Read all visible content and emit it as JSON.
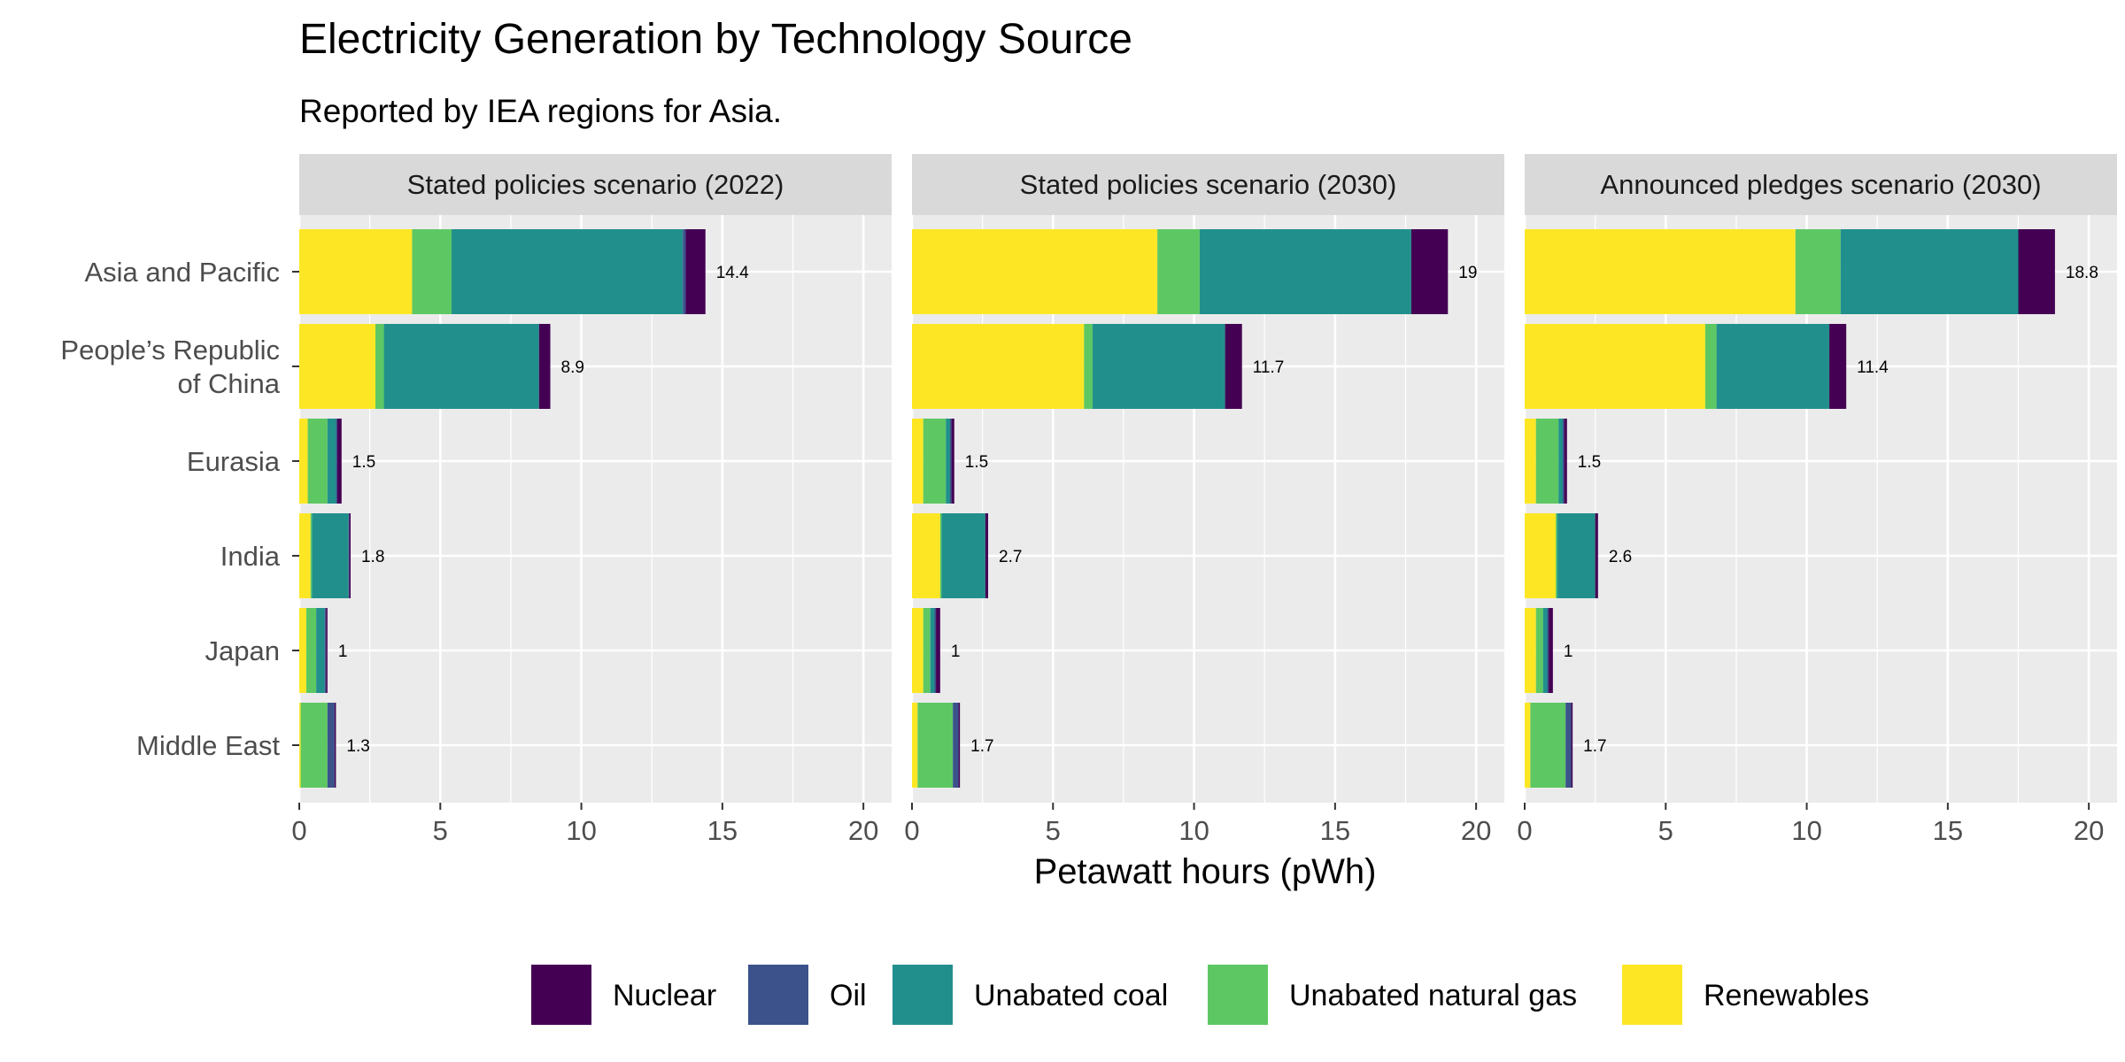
{
  "chart_data": {
    "type": "bar",
    "orientation": "horizontal",
    "stacked": true,
    "faceted": true,
    "title": "Electricity Generation by Technology Source",
    "subtitle": "Reported by IEA regions for Asia.",
    "xlabel": "Petawatt hours (pWh)",
    "xlim": [
      0,
      21
    ],
    "xticks": [
      0,
      5,
      10,
      15,
      20
    ],
    "categories": [
      [
        "Asia and Pacific"
      ],
      [
        "People’s Republic",
        "of China"
      ],
      [
        "Eurasia"
      ],
      [
        "India"
      ],
      [
        "Japan"
      ],
      [
        "Middle East"
      ]
    ],
    "series": [
      {
        "name": "Nuclear",
        "color": "#440154"
      },
      {
        "name": "Oil",
        "color": "#3B528B"
      },
      {
        "name": "Unabated coal",
        "color": "#21908C"
      },
      {
        "name": "Unabated natural gas",
        "color": "#5DC863"
      },
      {
        "name": "Renewables",
        "color": "#FDE725"
      }
    ],
    "stack_order_left_to_right": [
      "Renewables",
      "Unabated natural gas",
      "Unabated coal",
      "Oil",
      "Nuclear"
    ],
    "panels": [
      {
        "label": "Stated policies scenario (2022)",
        "totals": [
          "14.4",
          "8.9",
          "1.5",
          "1.8",
          "1",
          "1.3"
        ],
        "rows": [
          {
            "Renewables": 4.0,
            "Unabated natural gas": 1.4,
            "Unabated coal": 8.2,
            "Oil": 0.1,
            "Nuclear": 0.7
          },
          {
            "Renewables": 2.7,
            "Unabated natural gas": 0.3,
            "Unabated coal": 5.5,
            "Oil": 0.0,
            "Nuclear": 0.4
          },
          {
            "Renewables": 0.3,
            "Unabated natural gas": 0.7,
            "Unabated coal": 0.3,
            "Oil": 0.05,
            "Nuclear": 0.15
          },
          {
            "Renewables": 0.4,
            "Unabated natural gas": 0.05,
            "Unabated coal": 1.3,
            "Oil": 0.02,
            "Nuclear": 0.05
          },
          {
            "Renewables": 0.25,
            "Unabated natural gas": 0.35,
            "Unabated coal": 0.3,
            "Oil": 0.05,
            "Nuclear": 0.05
          },
          {
            "Renewables": 0.05,
            "Unabated natural gas": 0.95,
            "Unabated coal": 0.0,
            "Oil": 0.25,
            "Nuclear": 0.05
          }
        ]
      },
      {
        "label": "Stated policies scenario (2030)",
        "totals": [
          "19",
          "11.7",
          "1.5",
          "2.7",
          "1",
          "1.7"
        ],
        "rows": [
          {
            "Renewables": 8.7,
            "Unabated natural gas": 1.5,
            "Unabated coal": 7.5,
            "Oil": 0.0,
            "Nuclear": 1.3
          },
          {
            "Renewables": 6.1,
            "Unabated natural gas": 0.3,
            "Unabated coal": 4.7,
            "Oil": 0.0,
            "Nuclear": 0.6
          },
          {
            "Renewables": 0.4,
            "Unabated natural gas": 0.8,
            "Unabated coal": 0.15,
            "Oil": 0.05,
            "Nuclear": 0.1
          },
          {
            "Renewables": 1.0,
            "Unabated natural gas": 0.05,
            "Unabated coal": 1.55,
            "Oil": 0.0,
            "Nuclear": 0.1
          },
          {
            "Renewables": 0.4,
            "Unabated natural gas": 0.25,
            "Unabated coal": 0.15,
            "Oil": 0.05,
            "Nuclear": 0.15
          },
          {
            "Renewables": 0.2,
            "Unabated natural gas": 1.25,
            "Unabated coal": 0.0,
            "Oil": 0.2,
            "Nuclear": 0.05
          }
        ]
      },
      {
        "label": "Announced pledges scenario (2030)",
        "totals": [
          "18.8",
          "11.4",
          "1.5",
          "2.6",
          "1",
          "1.7"
        ],
        "rows": [
          {
            "Renewables": 9.6,
            "Unabated natural gas": 1.6,
            "Unabated coal": 6.3,
            "Oil": 0.0,
            "Nuclear": 1.3
          },
          {
            "Renewables": 6.4,
            "Unabated natural gas": 0.4,
            "Unabated coal": 4.0,
            "Oil": 0.0,
            "Nuclear": 0.6
          },
          {
            "Renewables": 0.4,
            "Unabated natural gas": 0.8,
            "Unabated coal": 0.15,
            "Oil": 0.05,
            "Nuclear": 0.1
          },
          {
            "Renewables": 1.1,
            "Unabated natural gas": 0.05,
            "Unabated coal": 1.35,
            "Oil": 0.0,
            "Nuclear": 0.1
          },
          {
            "Renewables": 0.4,
            "Unabated natural gas": 0.25,
            "Unabated coal": 0.15,
            "Oil": 0.05,
            "Nuclear": 0.15
          },
          {
            "Renewables": 0.2,
            "Unabated natural gas": 1.25,
            "Unabated coal": 0.0,
            "Oil": 0.2,
            "Nuclear": 0.05
          }
        ]
      }
    ],
    "legend": {
      "position": "bottom",
      "order": [
        "Nuclear",
        "Oil",
        "Unabated coal",
        "Unabated natural gas",
        "Renewables"
      ]
    },
    "grid": true,
    "panel_background": "#EBEBEB",
    "strip_background": "#D9D9D9"
  }
}
